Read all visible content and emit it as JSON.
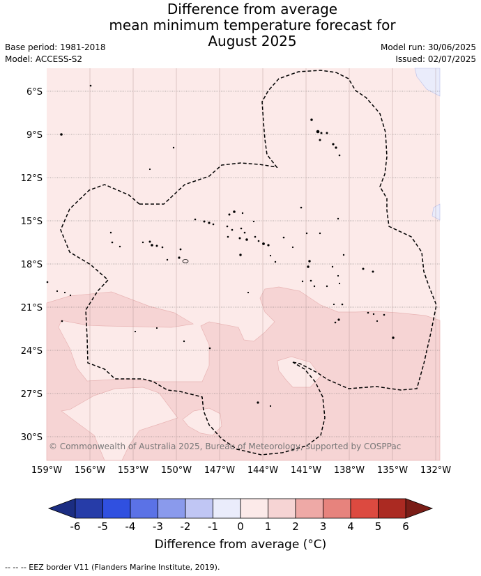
{
  "title_lines": [
    "Difference from average",
    "mean minimum temperature forecast for",
    "August 2025"
  ],
  "base_period": "Base period: 1981-2018",
  "model": "Model: ACCESS-S2",
  "model_run": "Model run: 30/06/2025",
  "issued": "Issued: 02/07/2025",
  "copyright": "© Commonwealth of Australia 2025, Bureau of Meteorology, supported by COSPPac",
  "lat_labels": [
    "6°S",
    "9°S",
    "12°S",
    "15°S",
    "18°S",
    "21°S",
    "24°S",
    "27°S",
    "30°S"
  ],
  "lon_labels": [
    "159°W",
    "156°W",
    "153°W",
    "150°W",
    "147°W",
    "144°W",
    "141°W",
    "138°W",
    "135°W",
    "132°W"
  ],
  "colorbar": {
    "ticks": [
      "-6",
      "-5",
      "-4",
      "-3",
      "-2",
      "-1",
      "0",
      "1",
      "2",
      "3",
      "4",
      "5",
      "6"
    ],
    "colors": [
      "#263ca8",
      "#3050e0",
      "#5b72e6",
      "#8a9aec",
      "#c0c6f4",
      "#eaecfb",
      "#fceae9",
      "#f6d4d4",
      "#eea9a6",
      "#e7837d",
      "#dc4a40",
      "#ab2a22"
    ],
    "under_color": "#1b2d82",
    "over_color": "#7a1d17",
    "label": "Difference from average (°C)"
  },
  "footnote": "-- -- -- EEZ border V11 (Flanders Marine Institute, 2019)."
}
